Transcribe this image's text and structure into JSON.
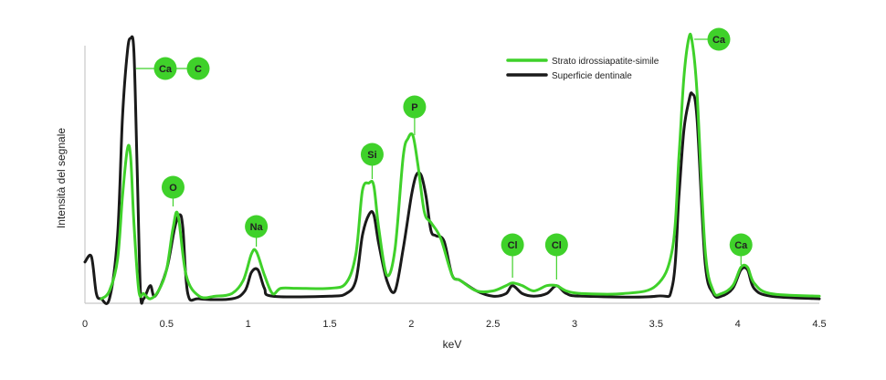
{
  "chart_data": {
    "type": "line",
    "xlabel": "keV",
    "ylabel": "Intensità del segnale",
    "xlim": [
      0,
      4.5
    ],
    "ylim": [
      0,
      100
    ],
    "xticks": [
      "0",
      "0.5",
      "1",
      "1.5",
      "2",
      "2.5",
      "3",
      "3.5",
      "4",
      "4.5"
    ],
    "grid": false,
    "legend_position": "top-right",
    "series": [
      {
        "name": "Strato idrossiapatite-simile",
        "color": "#3fd12a",
        "x": [
          0.1,
          0.15,
          0.2,
          0.23,
          0.26,
          0.28,
          0.3,
          0.33,
          0.36,
          0.4,
          0.45,
          0.5,
          0.54,
          0.57,
          0.62,
          0.7,
          0.8,
          0.9,
          0.97,
          1.02,
          1.05,
          1.1,
          1.15,
          1.2,
          1.3,
          1.5,
          1.6,
          1.66,
          1.7,
          1.74,
          1.77,
          1.8,
          1.85,
          1.9,
          1.95,
          1.98,
          2.01,
          2.04,
          2.08,
          2.12,
          2.18,
          2.25,
          2.3,
          2.4,
          2.5,
          2.58,
          2.62,
          2.68,
          2.75,
          2.83,
          2.89,
          2.95,
          3.05,
          3.3,
          3.5,
          3.6,
          3.64,
          3.67,
          3.7,
          3.72,
          3.75,
          3.8,
          3.85,
          3.9,
          3.97,
          4.02,
          4.06,
          4.1,
          4.2,
          4.5
        ],
        "y": [
          1,
          4,
          16,
          40,
          58,
          55,
          30,
          4,
          3,
          1,
          4,
          12,
          28,
          33,
          10,
          2,
          2,
          3,
          8,
          18,
          19,
          10,
          3,
          5,
          5,
          5,
          7,
          18,
          42,
          45,
          44,
          28,
          10,
          20,
          55,
          62,
          63,
          52,
          34,
          30,
          24,
          10,
          8,
          4,
          4,
          6,
          7,
          6,
          4,
          6,
          6,
          4,
          3,
          3,
          6,
          20,
          55,
          85,
          100,
          99,
          80,
          20,
          4,
          3,
          6,
          13,
          13,
          7,
          3,
          2
        ]
      },
      {
        "name": "Superficie dentinale",
        "color": "#1a1a1a",
        "x": [
          0,
          0.04,
          0.07,
          0.1,
          0.15,
          0.2,
          0.23,
          0.26,
          0.28,
          0.3,
          0.32,
          0.34,
          0.36,
          0.4,
          0.43,
          0.5,
          0.55,
          0.58,
          0.6,
          0.63,
          0.7,
          0.9,
          0.98,
          1.02,
          1.06,
          1.1,
          1.15,
          1.5,
          1.6,
          1.66,
          1.7,
          1.74,
          1.77,
          1.8,
          1.85,
          1.9,
          1.95,
          2.0,
          2.03,
          2.06,
          2.09,
          2.12,
          2.15,
          2.2,
          2.25,
          2.3,
          2.4,
          2.5,
          2.58,
          2.62,
          2.68,
          2.75,
          2.83,
          2.89,
          2.95,
          3.05,
          3.5,
          3.6,
          3.64,
          3.67,
          3.7,
          3.72,
          3.75,
          3.8,
          3.85,
          3.9,
          3.97,
          4.02,
          4.06,
          4.1,
          4.2,
          4.5
        ],
        "y": [
          15,
          17,
          3,
          1,
          1,
          25,
          70,
          95,
          100,
          95,
          50,
          4,
          1,
          6,
          2,
          12,
          28,
          33,
          28,
          3,
          1,
          1,
          4,
          11,
          12,
          5,
          2,
          2,
          3,
          8,
          25,
          33,
          33,
          22,
          8,
          4,
          20,
          40,
          48,
          48,
          40,
          27,
          25,
          23,
          10,
          8,
          4,
          2,
          3,
          6,
          3,
          2,
          3,
          6,
          3,
          2,
          2,
          6,
          40,
          65,
          76,
          79,
          70,
          15,
          3,
          2,
          5,
          12,
          12,
          5,
          2,
          1
        ]
      }
    ],
    "annotations": [
      {
        "label": "Ca",
        "x": 0.29
      },
      {
        "label": "C",
        "x": 0.29
      },
      {
        "label": "O",
        "x": 0.54
      },
      {
        "label": "Na",
        "x": 1.05
      },
      {
        "label": "Si",
        "x": 1.76
      },
      {
        "label": "P",
        "x": 2.02
      },
      {
        "label": "Cl",
        "x": 2.62
      },
      {
        "label": "Cl",
        "x": 2.89
      },
      {
        "label": "Ca",
        "x": 3.7
      },
      {
        "label": "Ca",
        "x": 4.02
      }
    ]
  }
}
